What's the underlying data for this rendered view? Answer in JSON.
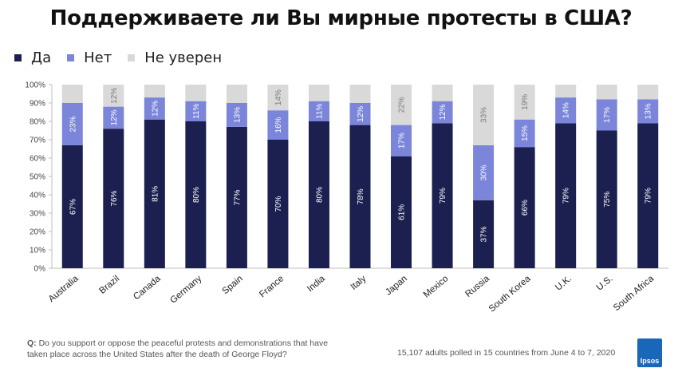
{
  "title": "Поддерживаете ли Вы мирные протесты в США?",
  "legend": [
    {
      "label": "Да",
      "color": "#1b2050"
    },
    {
      "label": "Нет",
      "color": "#7b85da"
    },
    {
      "label": "Не уверен",
      "color": "#d9d9d9"
    }
  ],
  "chart_data": {
    "type": "bar",
    "stacked": true,
    "percent_axis": true,
    "categories": [
      "Australia",
      "Brazil",
      "Canada",
      "Germany",
      "Spain",
      "France",
      "India",
      "Italy",
      "Japan",
      "Mexico",
      "Russia",
      "South Korea",
      "U.K.",
      "U.S.",
      "South Africa"
    ],
    "series": [
      {
        "name": "Да",
        "color": "#1b2050",
        "values": [
          67,
          76,
          81,
          80,
          77,
          70,
          80,
          78,
          61,
          79,
          37,
          66,
          79,
          75,
          79
        ],
        "labels": [
          "67%",
          "76%",
          "81%",
          "80%",
          "77%",
          "70%",
          "80%",
          "78%",
          "61%",
          "79%",
          "37%",
          "66%",
          "79%",
          "75%",
          "79%"
        ]
      },
      {
        "name": "Нет",
        "color": "#7b85da",
        "values": [
          23,
          12,
          12,
          11,
          13,
          16,
          11,
          12,
          17,
          12,
          30,
          15,
          14,
          17,
          13
        ],
        "labels": [
          "23%",
          "12%",
          "12%",
          "11%",
          "13%",
          "16%",
          "11%",
          "12%",
          "17%",
          "12%",
          "30%",
          "15%",
          "14%",
          "17%",
          "13%"
        ]
      },
      {
        "name": "Не уверен",
        "color": "#d9d9d9",
        "values": [
          10,
          12,
          7,
          9,
          10,
          14,
          9,
          10,
          22,
          9,
          33,
          19,
          7,
          8,
          8
        ],
        "labels": [
          "",
          "12%",
          "",
          "",
          "",
          "14%",
          "",
          "",
          "22%",
          "",
          "33%",
          "19%",
          "",
          "",
          ""
        ]
      }
    ],
    "yticks": [
      "0%",
      "10%",
      "20%",
      "30%",
      "40%",
      "50%",
      "60%",
      "70%",
      "80%",
      "90%",
      "100%"
    ],
    "ylim": [
      0,
      100
    ],
    "grid": false
  },
  "footer": {
    "question_prefix": "Q:",
    "question": "Do you support or oppose the peaceful protests and demonstrations that have taken place across the United States after the death of George Floyd?",
    "note": "15,107 adults polled in 15 countries from June 4 to 7, 2020",
    "logo": "Ipsos"
  }
}
